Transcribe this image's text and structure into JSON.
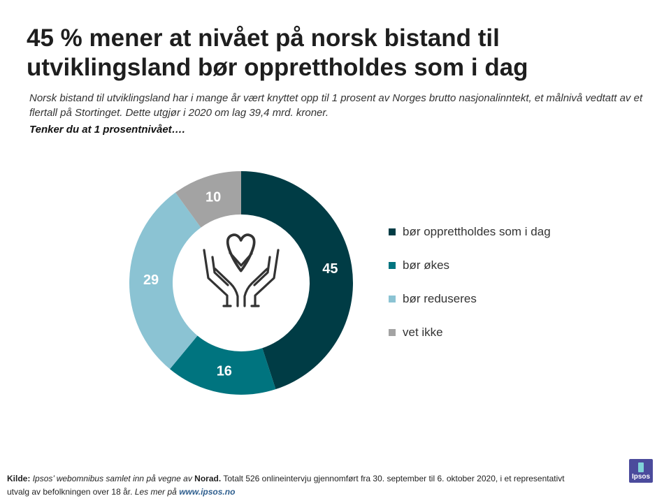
{
  "title": "45 % mener at nivået på norsk bistand til utviklingsland bør opprettholdes som i dag",
  "subtitle": "Norsk bistand til utviklingsland har i mange år vært knyttet opp til 1 prosent av Norges brutto nasjonalinntekt, et målnivå vedtatt av et flertall på Stortinget. Dette utgjør i 2020 om lag 39,4 mrd. kroner.",
  "question": "Tenker du at 1 prosentnivået….",
  "chart_data": {
    "type": "pie",
    "donut": true,
    "categories": [
      "bør opprettholdes som i dag",
      "bør økes",
      "bør reduseres",
      "vet ikke"
    ],
    "values": [
      45,
      16,
      29,
      10
    ],
    "colors": [
      "#003c45",
      "#00747f",
      "#8bc3d3",
      "#a3a3a3"
    ],
    "legend_position": "right",
    "center_icon": "hands-heart-icon"
  },
  "footer": {
    "source_label": "Kilde:",
    "source_part1": "Ipsos’ webomnibus samlet inn på vegne av",
    "source_client": "Norad.",
    "source_part2": "Totalt 526 onlineintervju gjennomført fra 30. september til 6. oktober 2020, i et representativt utvalg av befolkningen over 18 år.",
    "more_text": "Les mer på",
    "url": "www.ipsos.no"
  },
  "logo": {
    "text": "Ipsos"
  }
}
